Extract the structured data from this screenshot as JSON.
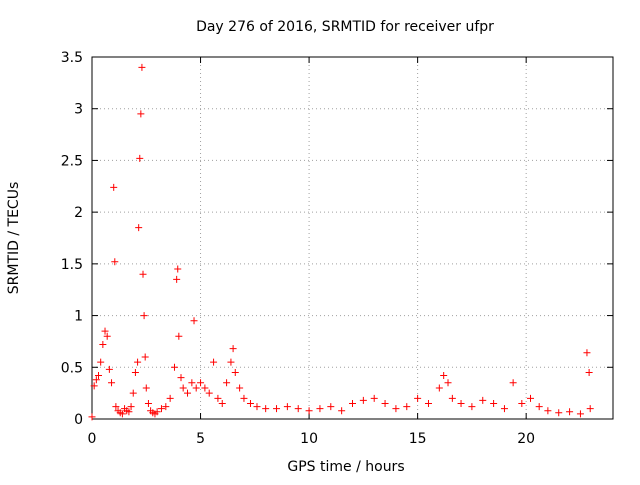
{
  "chart_data": {
    "type": "scatter",
    "title": "Day 276 of 2016, SRMTID for receiver ufpr",
    "xlabel": "GPS time / hours",
    "ylabel": "SRMTID / TECUs",
    "xlim": [
      0,
      24.0
    ],
    "ylim": [
      0,
      3.5
    ],
    "xticks": [
      0,
      5,
      10,
      15,
      20
    ],
    "xtick_labels": [
      "0",
      "5",
      "10",
      "15",
      "20"
    ],
    "yticks": [
      0,
      0.5,
      1,
      1.5,
      2,
      2.5,
      3,
      3.5
    ],
    "ytick_labels": [
      "0",
      "0.5",
      "1",
      "1.5",
      "2",
      "2.5",
      "3",
      "3.5"
    ],
    "grid": true,
    "marker": "+",
    "series": [
      {
        "name": "SRMTID",
        "color": "#ff0000",
        "x": [
          0.0,
          0.1,
          0.2,
          0.3,
          0.4,
          0.5,
          0.6,
          0.7,
          0.8,
          0.9,
          1.0,
          1.05,
          1.1,
          1.2,
          1.3,
          1.4,
          1.5,
          1.6,
          1.7,
          1.8,
          1.9,
          2.0,
          2.1,
          2.15,
          2.2,
          2.25,
          2.3,
          2.35,
          2.4,
          2.45,
          2.5,
          2.6,
          2.7,
          2.8,
          2.9,
          3.0,
          3.2,
          3.4,
          3.6,
          3.8,
          3.9,
          3.95,
          4.0,
          4.1,
          4.2,
          4.4,
          4.6,
          4.7,
          4.8,
          5.0,
          5.2,
          5.4,
          5.6,
          5.8,
          6.0,
          6.2,
          6.4,
          6.5,
          6.6,
          6.8,
          7.0,
          7.3,
          7.6,
          8.0,
          8.5,
          9.0,
          9.5,
          10.0,
          10.5,
          11.0,
          11.5,
          12.0,
          12.5,
          13.0,
          13.5,
          14.0,
          14.5,
          15.0,
          15.5,
          16.0,
          16.2,
          16.4,
          16.6,
          17.0,
          17.5,
          18.0,
          18.5,
          19.0,
          19.4,
          19.8,
          20.2,
          20.6,
          21.0,
          21.5,
          22.0,
          22.5,
          22.8,
          22.9,
          22.95
        ],
        "y": [
          0.02,
          0.32,
          0.38,
          0.42,
          0.55,
          0.72,
          0.85,
          0.8,
          0.48,
          0.35,
          2.24,
          1.52,
          0.12,
          0.08,
          0.06,
          0.05,
          0.1,
          0.08,
          0.07,
          0.12,
          0.25,
          0.45,
          0.55,
          1.85,
          2.52,
          2.95,
          3.4,
          1.4,
          1.0,
          0.6,
          0.3,
          0.15,
          0.08,
          0.06,
          0.05,
          0.07,
          0.1,
          0.12,
          0.2,
          0.5,
          1.35,
          1.45,
          0.8,
          0.4,
          0.3,
          0.25,
          0.35,
          0.95,
          0.3,
          0.35,
          0.3,
          0.25,
          0.55,
          0.2,
          0.15,
          0.35,
          0.55,
          0.68,
          0.45,
          0.3,
          0.2,
          0.15,
          0.12,
          0.1,
          0.1,
          0.12,
          0.1,
          0.08,
          0.1,
          0.12,
          0.08,
          0.15,
          0.18,
          0.2,
          0.15,
          0.1,
          0.12,
          0.2,
          0.15,
          0.3,
          0.42,
          0.35,
          0.2,
          0.15,
          0.12,
          0.18,
          0.15,
          0.1,
          0.35,
          0.15,
          0.2,
          0.12,
          0.08,
          0.06,
          0.07,
          0.05,
          0.64,
          0.45,
          0.1
        ]
      }
    ]
  }
}
